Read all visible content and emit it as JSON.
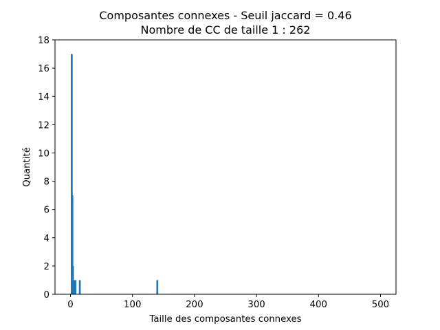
{
  "chart_data": {
    "type": "bar",
    "title": "Composantes connexes - Seuil jaccard = 0.46",
    "subtitle": "Nombre de CC de taille 1 : 262",
    "xlabel": "Taille des composantes connexes",
    "ylabel": "Quantité",
    "xlim": [
      -25,
      525
    ],
    "ylim": [
      0,
      18
    ],
    "x_ticks": [
      0,
      100,
      200,
      300,
      400,
      500
    ],
    "y_ticks": [
      0,
      2,
      4,
      6,
      8,
      10,
      12,
      14,
      16,
      18
    ],
    "grid": false,
    "bar_color": "#1f77b4",
    "bar_width": 3,
    "bars": [
      {
        "x": 2,
        "value": 17
      },
      {
        "x": 3,
        "value": 7
      },
      {
        "x": 4,
        "value": 2
      },
      {
        "x": 6,
        "value": 1
      },
      {
        "x": 8,
        "value": 1
      },
      {
        "x": 15,
        "value": 1
      },
      {
        "x": 140,
        "value": 1
      }
    ]
  }
}
